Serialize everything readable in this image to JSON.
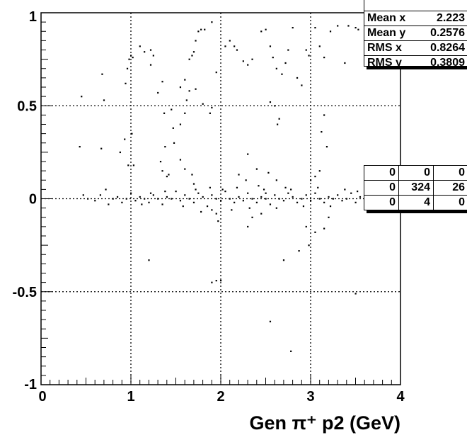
{
  "chart_data": {
    "type": "scatter",
    "title": "",
    "xlabel": "Gen π⁺ p2 (GeV)",
    "ylabel": "",
    "xlim": [
      0,
      4
    ],
    "ylim": [
      -1,
      1
    ],
    "xticks": [
      "0",
      "1",
      "2",
      "3",
      "4"
    ],
    "yticks": [
      "-1",
      "-0.5",
      "0",
      "0.5",
      "1"
    ],
    "grid": true,
    "stats_box": {
      "rows": [
        {
          "label": "Mean x",
          "value": "2.223"
        },
        {
          "label": "Mean y",
          "value": "0.2576"
        },
        {
          "label": "RMS x",
          "value": "0.8264"
        },
        {
          "label": "RMS y",
          "value": "0.3809"
        }
      ],
      "overflow_table": [
        [
          "0",
          "0",
          "0"
        ],
        [
          "0",
          "324",
          "26"
        ],
        [
          "0",
          "4",
          "0"
        ]
      ]
    },
    "points": [
      [
        0.45,
        0.55
      ],
      [
        0.43,
        0.28
      ],
      [
        0.68,
        0.67
      ],
      [
        0.7,
        0.53
      ],
      [
        0.67,
        0.27
      ],
      [
        0.88,
        0.25
      ],
      [
        0.93,
        0.32
      ],
      [
        0.94,
        0.62
      ],
      [
        0.96,
        0.7
      ],
      [
        0.98,
        0.75
      ],
      [
        1.0,
        0.77
      ],
      [
        1.02,
        0.76
      ],
      [
        0.97,
        0.18
      ],
      [
        1.01,
        0.35
      ],
      [
        1.03,
        0.18
      ],
      [
        1.1,
        0.82
      ],
      [
        1.15,
        0.79
      ],
      [
        1.22,
        0.8
      ],
      [
        1.25,
        0.77
      ],
      [
        1.22,
        0.72
      ],
      [
        1.3,
        0.57
      ],
      [
        1.35,
        0.63
      ],
      [
        1.37,
        0.46
      ],
      [
        1.45,
        0.48
      ],
      [
        1.47,
        0.38
      ],
      [
        1.55,
        0.6
      ],
      [
        1.6,
        0.64
      ],
      [
        1.65,
        0.75
      ],
      [
        1.68,
        0.77
      ],
      [
        1.7,
        0.79
      ],
      [
        1.72,
        0.85
      ],
      [
        1.75,
        0.9
      ],
      [
        1.78,
        0.91
      ],
      [
        1.82,
        0.91
      ],
      [
        1.9,
        0.95
      ],
      [
        1.95,
        0.68
      ],
      [
        1.9,
        0.49
      ],
      [
        1.88,
        0.46
      ],
      [
        1.8,
        0.51
      ],
      [
        1.72,
        0.59
      ],
      [
        1.65,
        0.58
      ],
      [
        1.62,
        0.53
      ],
      [
        1.6,
        0.46
      ],
      [
        1.55,
        0.4
      ],
      [
        1.48,
        0.3
      ],
      [
        1.38,
        0.28
      ],
      [
        1.33,
        0.2
      ],
      [
        1.35,
        0.15
      ],
      [
        1.4,
        0.12
      ],
      [
        1.42,
        0.13
      ],
      [
        1.55,
        0.21
      ],
      [
        1.6,
        0.16
      ],
      [
        1.68,
        0.13
      ],
      [
        1.7,
        0.08
      ],
      [
        2.05,
        0.82
      ],
      [
        2.1,
        0.85
      ],
      [
        2.15,
        0.82
      ],
      [
        2.18,
        0.8
      ],
      [
        2.25,
        0.74
      ],
      [
        2.3,
        0.72
      ],
      [
        2.35,
        0.75
      ],
      [
        2.45,
        0.9
      ],
      [
        2.5,
        0.91
      ],
      [
        2.55,
        0.82
      ],
      [
        2.58,
        0.76
      ],
      [
        2.62,
        0.7
      ],
      [
        2.68,
        0.67
      ],
      [
        2.72,
        0.73
      ],
      [
        2.75,
        0.8
      ],
      [
        2.8,
        0.92
      ],
      [
        2.85,
        0.65
      ],
      [
        2.9,
        0.61
      ],
      [
        2.95,
        0.8
      ],
      [
        2.98,
        0.77
      ],
      [
        3.05,
        0.92
      ],
      [
        3.1,
        0.82
      ],
      [
        3.15,
        0.76
      ],
      [
        3.22,
        0.9
      ],
      [
        3.3,
        0.93
      ],
      [
        3.38,
        0.73
      ],
      [
        3.42,
        0.93
      ],
      [
        3.5,
        0.92
      ],
      [
        3.53,
        0.91
      ],
      [
        3.15,
        0.45
      ],
      [
        3.12,
        0.36
      ],
      [
        3.18,
        0.28
      ],
      [
        2.55,
        0.52
      ],
      [
        2.6,
        0.5
      ],
      [
        2.63,
        0.4
      ],
      [
        2.65,
        0.43
      ],
      [
        2.62,
        0.1
      ],
      [
        2.53,
        0.14
      ],
      [
        2.4,
        0.16
      ],
      [
        2.28,
        0.1
      ],
      [
        2.3,
        0.24
      ],
      [
        2.2,
        0.13
      ],
      [
        2.5,
        0.03
      ],
      [
        3.0,
        0.1
      ],
      [
        3.05,
        0.12
      ],
      [
        3.1,
        0.15
      ],
      [
        1.2,
        -0.33
      ],
      [
        1.9,
        -0.45
      ],
      [
        1.95,
        -0.44
      ],
      [
        2.0,
        -0.44
      ],
      [
        2.55,
        -0.66
      ],
      [
        2.7,
        -0.33
      ],
      [
        2.78,
        -0.82
      ],
      [
        2.87,
        -0.28
      ],
      [
        2.95,
        -0.15
      ],
      [
        2.98,
        -0.25
      ],
      [
        3.05,
        -0.18
      ],
      [
        3.15,
        -0.16
      ],
      [
        3.2,
        -0.1
      ],
      [
        2.35,
        -0.1
      ],
      [
        2.3,
        -0.15
      ],
      [
        1.95,
        -0.08
      ],
      [
        1.97,
        -0.12
      ],
      [
        1.9,
        -0.06
      ],
      [
        2.45,
        -0.08
      ],
      [
        3.5,
        -0.51
      ],
      [
        0.47,
        0.02
      ],
      [
        0.52,
        0.0
      ],
      [
        0.6,
        -0.01
      ],
      [
        0.66,
        0.02
      ],
      [
        0.72,
        0.05
      ],
      [
        0.75,
        -0.03
      ],
      [
        0.8,
        0.0
      ],
      [
        0.85,
        0.01
      ],
      [
        0.9,
        -0.02
      ],
      [
        0.95,
        0.0
      ],
      [
        1.0,
        0.03
      ],
      [
        1.05,
        -0.01
      ],
      [
        1.1,
        0.01
      ],
      [
        1.15,
        0.0
      ],
      [
        1.2,
        -0.02
      ],
      [
        1.25,
        0.02
      ],
      [
        1.3,
        0.0
      ],
      [
        1.35,
        -0.03
      ],
      [
        1.4,
        0.01
      ],
      [
        1.45,
        0.0
      ],
      [
        1.5,
        0.04
      ],
      [
        1.55,
        -0.01
      ],
      [
        1.6,
        0.02
      ],
      [
        1.65,
        0.0
      ],
      [
        1.7,
        -0.02
      ],
      [
        1.75,
        0.03
      ],
      [
        1.8,
        0.01
      ],
      [
        1.85,
        -0.04
      ],
      [
        1.9,
        0.02
      ],
      [
        1.95,
        0.0
      ],
      [
        2.0,
        -0.01
      ],
      [
        2.05,
        0.04
      ],
      [
        2.1,
        0.0
      ],
      [
        2.15,
        -0.02
      ],
      [
        2.2,
        0.01
      ],
      [
        2.25,
        -0.01
      ],
      [
        2.3,
        0.03
      ],
      [
        2.35,
        0.0
      ],
      [
        2.4,
        -0.02
      ],
      [
        2.45,
        0.01
      ],
      [
        2.5,
        0.0
      ],
      [
        2.55,
        -0.03
      ],
      [
        2.6,
        0.02
      ],
      [
        2.65,
        0.0
      ],
      [
        2.7,
        -0.01
      ],
      [
        2.75,
        0.03
      ],
      [
        2.8,
        0.01
      ],
      [
        2.85,
        -0.02
      ],
      [
        2.9,
        0.0
      ],
      [
        2.95,
        0.02
      ],
      [
        3.0,
        -0.01
      ],
      [
        3.05,
        0.03
      ],
      [
        3.1,
        0.0
      ],
      [
        3.15,
        -0.02
      ],
      [
        3.2,
        0.01
      ],
      [
        3.25,
        0.0
      ],
      [
        3.3,
        0.02
      ],
      [
        3.35,
        -0.01
      ],
      [
        3.4,
        0.0
      ],
      [
        3.45,
        0.03
      ],
      [
        3.5,
        -0.02
      ],
      [
        3.55,
        0.01
      ],
      [
        3.6,
        0.0
      ],
      [
        3.65,
        0.03
      ],
      [
        3.7,
        0.06
      ],
      [
        1.12,
        -0.03
      ],
      [
        1.22,
        0.03
      ],
      [
        1.38,
        0.04
      ],
      [
        1.58,
        -0.04
      ],
      [
        1.72,
        0.05
      ],
      [
        1.88,
        0.06
      ],
      [
        2.02,
        0.05
      ],
      [
        2.18,
        0.06
      ],
      [
        2.32,
        -0.05
      ],
      [
        2.48,
        0.05
      ],
      [
        2.62,
        -0.05
      ],
      [
        2.78,
        0.05
      ],
      [
        2.92,
        -0.04
      ],
      [
        3.08,
        0.06
      ],
      [
        3.22,
        -0.04
      ],
      [
        3.38,
        0.05
      ],
      [
        3.52,
        0.04
      ],
      [
        1.78,
        -0.07
      ],
      [
        2.12,
        -0.06
      ],
      [
        2.42,
        0.07
      ],
      [
        2.72,
        0.06
      ]
    ]
  }
}
